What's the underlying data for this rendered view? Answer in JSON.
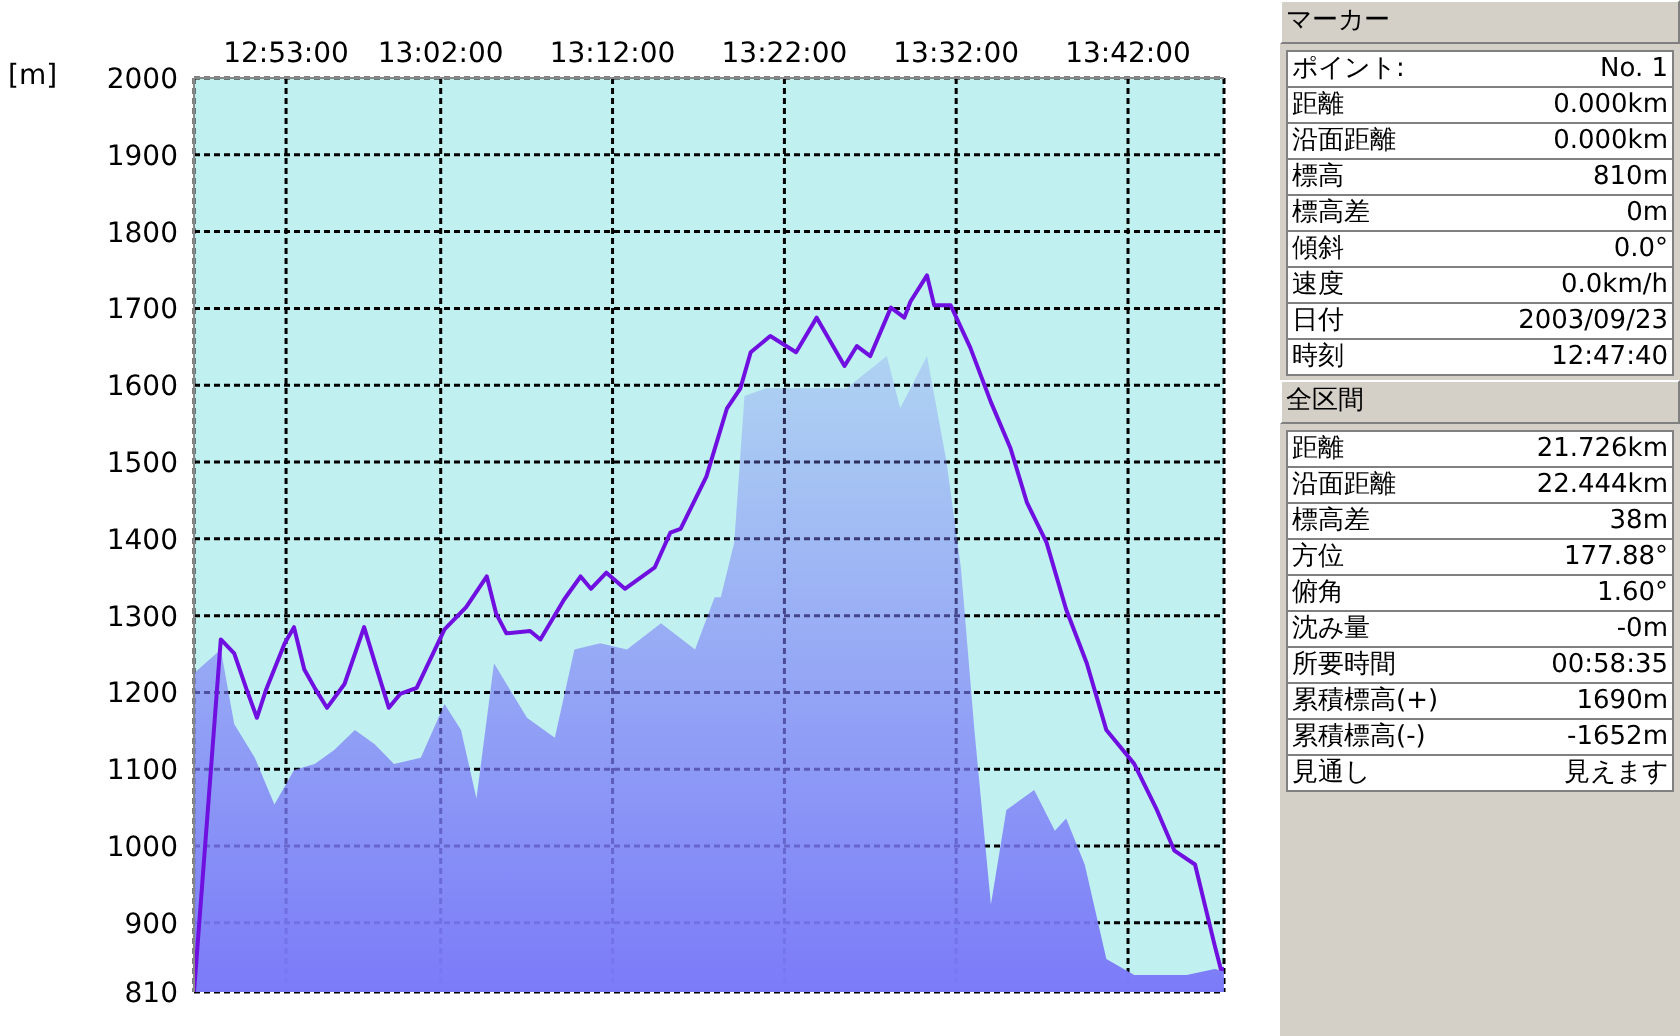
{
  "chart_data": [
    {
      "type": "line",
      "ylabel": "[m]",
      "xlim": [
        12.794,
        13.7931
      ],
      "xticks": [
        {
          "value": 12.8833,
          "label": "12:53:00"
        },
        {
          "value": 13.0333,
          "label": "13:02:00"
        },
        {
          "value": 13.2,
          "label": "13:12:00"
        },
        {
          "value": 13.3667,
          "label": "13:22:00"
        },
        {
          "value": 13.5333,
          "label": "13:32:00"
        },
        {
          "value": 13.7,
          "label": "13:42:00"
        }
      ],
      "ylim": [
        810,
        2000
      ],
      "yticks": [
        810,
        900,
        1000,
        1100,
        1200,
        1300,
        1400,
        1500,
        1600,
        1700,
        1800,
        1900,
        2000
      ],
      "grid": true,
      "marker": "none",
      "series": [
        {
          "type": "area",
          "color": "#7b7bf8",
          "x": [
            12.794,
            12.82,
            12.833,
            12.853,
            12.872,
            12.891,
            12.911,
            12.93,
            12.95,
            12.969,
            12.988,
            13.014,
            13.037,
            13.053,
            13.068,
            13.085,
            13.117,
            13.144,
            13.163,
            13.188,
            13.214,
            13.247,
            13.28,
            13.299,
            13.305,
            13.318,
            13.328,
            13.349,
            13.427,
            13.466,
            13.479,
            13.505,
            13.524,
            13.538,
            13.551,
            13.567,
            13.582,
            13.609,
            13.629,
            13.64,
            13.658,
            13.679,
            13.706,
            13.757,
            13.784,
            13.793
          ],
          "values": [
            1225,
            1256,
            1159,
            1115,
            1054,
            1099,
            1107,
            1125,
            1151,
            1133,
            1107,
            1115,
            1185,
            1151,
            1062,
            1238,
            1167,
            1141,
            1256,
            1264,
            1256,
            1290,
            1256,
            1324,
            1324,
            1395,
            1586,
            1596,
            1596,
            1638,
            1570,
            1638,
            1500,
            1361,
            1151,
            924,
            1047,
            1073,
            1020,
            1036,
            976,
            853,
            832,
            832,
            840,
            837
          ]
        },
        {
          "type": "line",
          "color": "#7010e0",
          "x": [
            12.794,
            12.82,
            12.833,
            12.845,
            12.855,
            12.864,
            12.882,
            12.891,
            12.901,
            12.911,
            12.923,
            12.94,
            12.959,
            12.971,
            12.983,
            12.994,
            13.01,
            13.037,
            13.058,
            13.078,
            13.087,
            13.097,
            13.12,
            13.13,
            13.153,
            13.169,
            13.179,
            13.194,
            13.212,
            13.241,
            13.256,
            13.266,
            13.291,
            13.311,
            13.324,
            13.334,
            13.353,
            13.378,
            13.398,
            13.425,
            13.437,
            13.45,
            13.47,
            13.483,
            13.489,
            13.505,
            13.512,
            13.528,
            13.547,
            13.567,
            13.586,
            13.602,
            13.621,
            13.64,
            13.66,
            13.679,
            13.706,
            13.728,
            13.745,
            13.765,
            13.784,
            13.79,
            13.793
          ],
          "values": [
            810,
            1269,
            1251,
            1204,
            1167,
            1204,
            1264,
            1285,
            1230,
            1206,
            1180,
            1211,
            1285,
            1232,
            1180,
            1198,
            1206,
            1282,
            1311,
            1351,
            1303,
            1277,
            1280,
            1269,
            1321,
            1351,
            1335,
            1356,
            1335,
            1363,
            1408,
            1413,
            1481,
            1570,
            1596,
            1643,
            1664,
            1643,
            1688,
            1625,
            1651,
            1638,
            1701,
            1688,
            1709,
            1743,
            1704,
            1704,
            1649,
            1578,
            1518,
            1447,
            1395,
            1308,
            1238,
            1151,
            1107,
            1047,
            994,
            976,
            871,
            840,
            840
          ]
        }
      ]
    },
    {
      "type": "other",
      "title": "マーカー",
      "annotations": [
        "ポイント:",
        "No. 1",
        "距離",
        "0.000km",
        "沿面距離",
        "0.000km",
        "標高",
        "810m",
        "標高差",
        "0m",
        "傾斜",
        "0.0°",
        "速度",
        "0.0km/h",
        "日付",
        "2003/09/23",
        "時刻",
        "12:47:40"
      ]
    },
    {
      "type": "other",
      "title": "全区間",
      "annotations": [
        "距離",
        "21.726km",
        "沿面距離",
        "22.444km",
        "標高差",
        "38m",
        "方位",
        "177.88°",
        "俯角",
        "1.60°",
        "沈み量",
        "-0m",
        "所要時間",
        "00:58:35",
        "累積標高(+)",
        "1690m",
        "累積標高(-)",
        "-1652m",
        "見通し",
        "見えます"
      ]
    }
  ]
}
